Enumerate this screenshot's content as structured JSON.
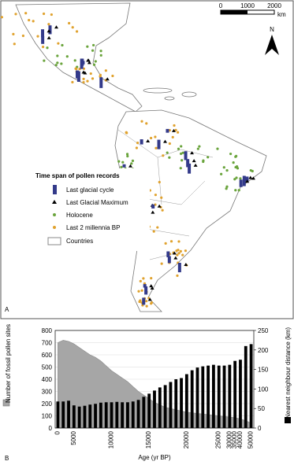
{
  "map_panel": {
    "panel_label": "A",
    "legend": {
      "title": "Time span of pollen records",
      "items": [
        "Last glacial cycle",
        "Last Glacial Maximum",
        "Holocene",
        "Last 2 millennia BP",
        "Countries"
      ]
    },
    "scale_bar": {
      "labels": [
        "0",
        "1000",
        "2000"
      ],
      "unit": "km"
    },
    "north_arrow": "N"
  },
  "chart_data": {
    "type": "bar-area",
    "panel_label": "B",
    "x_label": "Age (yr BP)",
    "categories": [
      "0",
      null,
      null,
      "5000",
      null,
      null,
      null,
      null,
      null,
      null,
      "10000",
      null,
      null,
      null,
      null,
      null,
      null,
      "15000",
      null,
      null,
      null,
      null,
      null,
      null,
      "20000",
      null,
      null,
      null,
      null,
      null,
      "25000",
      null,
      "30000",
      "35000",
      "40000",
      null,
      "50000"
    ],
    "series": [
      {
        "name": "Number of fossil pollen sites",
        "color": "#a6a6a6",
        "kind": "area",
        "axis": "y",
        "values": [
          700,
          720,
          710,
          690,
          660,
          630,
          600,
          580,
          550,
          510,
          470,
          440,
          410,
          380,
          340,
          300,
          270,
          240,
          210,
          190,
          170,
          160,
          150,
          140,
          130,
          125,
          120,
          115,
          110,
          105,
          100,
          95,
          90,
          85,
          75,
          60,
          40
        ]
      },
      {
        "name": "Nearest neighbour distance (km)",
        "color": "#000000",
        "kind": "bar",
        "axis": "y2",
        "values": [
          68,
          68,
          70,
          58,
          55,
          57,
          60,
          62,
          65,
          66,
          66,
          67,
          66,
          66,
          68,
          72,
          80,
          88,
          96,
          104,
          110,
          118,
          125,
          128,
          138,
          148,
          155,
          158,
          160,
          162,
          160,
          160,
          162,
          172,
          175,
          210,
          215
        ]
      }
    ],
    "ylim": [
      0,
      800
    ],
    "yticks": [
      0,
      100,
      200,
      300,
      400,
      500,
      600,
      700,
      800
    ],
    "y2lim": [
      0,
      250
    ],
    "y2ticks": [
      0,
      50,
      100,
      150,
      200,
      250
    ],
    "grid": true
  }
}
